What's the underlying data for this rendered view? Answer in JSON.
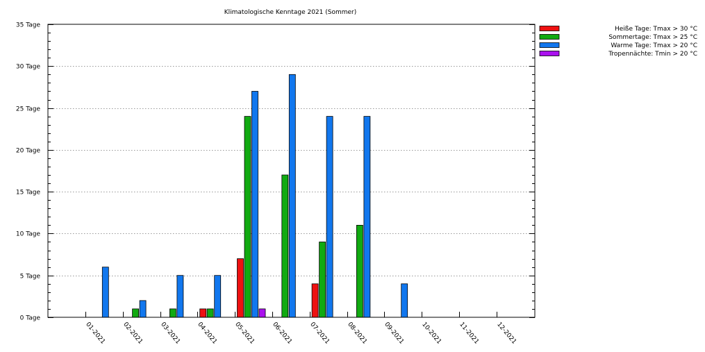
{
  "chart_data": {
    "type": "bar",
    "title": "Klimatologische Kenntage 2021 (Sommer)",
    "xlabel": "",
    "ylabel": "",
    "ylim": [
      0,
      35
    ],
    "y_ticks": [
      {
        "value": 0,
        "label": "0 Tage"
      },
      {
        "value": 5,
        "label": "5 Tage"
      },
      {
        "value": 10,
        "label": "10 Tage"
      },
      {
        "value": 15,
        "label": "15 Tage"
      },
      {
        "value": 20,
        "label": "20 Tage"
      },
      {
        "value": 25,
        "label": "25 Tage"
      },
      {
        "value": 30,
        "label": "30 Tage"
      },
      {
        "value": 35,
        "label": "35 Tage"
      }
    ],
    "categories": [
      "01-2021",
      "02-2021",
      "03-2021",
      "04-2021",
      "05-2021",
      "06-2021",
      "07-2021",
      "08-2021",
      "09-2021",
      "10-2021",
      "11-2021",
      "12-2021"
    ],
    "grid": "horizontal-dotted",
    "legend_position": "right",
    "series": [
      {
        "name": "Heiße Tage: Tmax > 30 °C",
        "color": "#ee1111",
        "values": [
          0,
          0,
          0,
          0,
          1,
          7,
          0,
          4,
          0,
          0,
          0,
          0
        ]
      },
      {
        "name": "Sommertage: Tmax > 25 °C",
        "color": "#11aa11",
        "values": [
          0,
          0,
          1,
          1,
          1,
          24,
          17,
          9,
          11,
          0,
          0,
          0
        ]
      },
      {
        "name": "Warme Tage: Tmax > 20 °C",
        "color": "#1177ee",
        "values": [
          0,
          6,
          2,
          5,
          5,
          27,
          29,
          24,
          24,
          4,
          0,
          0
        ]
      },
      {
        "name": "Tropennächte: Tmin > 20 °C",
        "color": "#aa11ee",
        "values": [
          0,
          0,
          0,
          0,
          0,
          1,
          0,
          0,
          0,
          0,
          0,
          0
        ]
      }
    ]
  }
}
